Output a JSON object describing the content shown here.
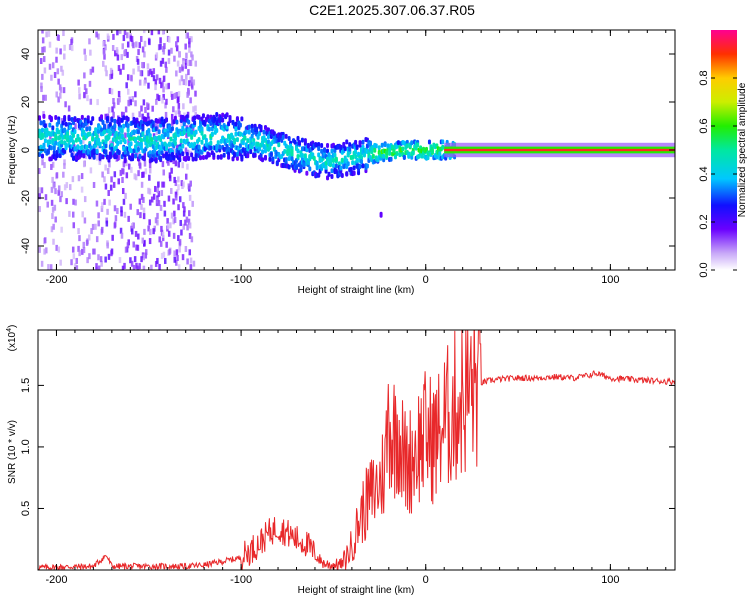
{
  "figure_title": "C2E1.2025.307.06.37.R05",
  "chart_data": [
    {
      "type": "heatmap",
      "title": "C2E1.2025.307.06.37.R05",
      "xlabel": "Height of straight line (km)",
      "ylabel": "Frequency (Hz)",
      "xlim": [
        -210,
        135
      ],
      "ylim": [
        -50,
        50
      ],
      "xticks": [
        -200,
        -100,
        0,
        100
      ],
      "xtick_labels": [
        "-200",
        "-100",
        "0",
        "100"
      ],
      "yticks": [
        -40,
        -20,
        0,
        20,
        40
      ],
      "ytick_labels": [
        "-40",
        "-20",
        "0",
        "20",
        "40"
      ],
      "center_frequency_trend": {
        "x": [
          -210,
          -180,
          -150,
          -130,
          -110,
          -90,
          -70,
          -55,
          -40,
          -25,
          -10,
          0,
          10,
          135
        ],
        "y": [
          5,
          5,
          4,
          5,
          6,
          3,
          -2,
          -5,
          -3,
          -1,
          0,
          0,
          0,
          0
        ]
      },
      "colorbar": {
        "label": "Normalized spectral amplitude",
        "min": 0.0,
        "max": 1.0,
        "ticks": [
          0.0,
          0.2,
          0.4,
          0.6,
          0.8
        ],
        "tick_labels": [
          "0.0",
          "0.2",
          "0.4",
          "0.6",
          "0.8"
        ]
      }
    },
    {
      "type": "line",
      "xlabel": "Height of straight line (km)",
      "ylabel": "SNR (10 * v/v)",
      "y_multiplier": "(x10",
      "y_multiplier_exp": "4",
      "y_multiplier_close": ")",
      "xlim": [
        -210,
        135
      ],
      "ylim": [
        0,
        1.95
      ],
      "xticks": [
        -200,
        -100,
        0,
        100
      ],
      "xtick_labels": [
        "-200",
        "-100",
        "0",
        "100"
      ],
      "yticks": [
        0.5,
        1.0,
        1.5
      ],
      "ytick_labels": [
        "0.5",
        "1.0",
        "1.5"
      ],
      "series": [
        {
          "name": "SNR",
          "color": "#e8282a",
          "x": [
            -210,
            -180,
            -173,
            -170,
            -130,
            -120,
            -100,
            -90,
            -85,
            -80,
            -75,
            -70,
            -65,
            -60,
            -55,
            -50,
            -45,
            -40,
            -35,
            -30,
            -25,
            -22,
            -20,
            -18,
            -15,
            -12,
            -10,
            -5,
            0,
            5,
            10,
            15,
            20,
            25,
            30,
            35,
            40,
            50,
            60,
            70,
            80,
            88,
            92,
            100,
            110,
            120,
            135
          ],
          "y": [
            0.02,
            0.03,
            0.12,
            0.03,
            0.03,
            0.04,
            0.1,
            0.22,
            0.3,
            0.35,
            0.3,
            0.25,
            0.22,
            0.12,
            0.05,
            0.04,
            0.05,
            0.2,
            0.45,
            0.6,
            0.7,
            0.85,
            1.3,
            1.05,
            1.2,
            0.9,
            0.85,
            1.0,
            1.1,
            1.05,
            1.2,
            1.3,
            1.4,
            1.48,
            1.52,
            1.54,
            1.55,
            1.56,
            1.56,
            1.57,
            1.56,
            1.58,
            1.6,
            1.56,
            1.55,
            1.54,
            1.53
          ]
        }
      ]
    }
  ]
}
